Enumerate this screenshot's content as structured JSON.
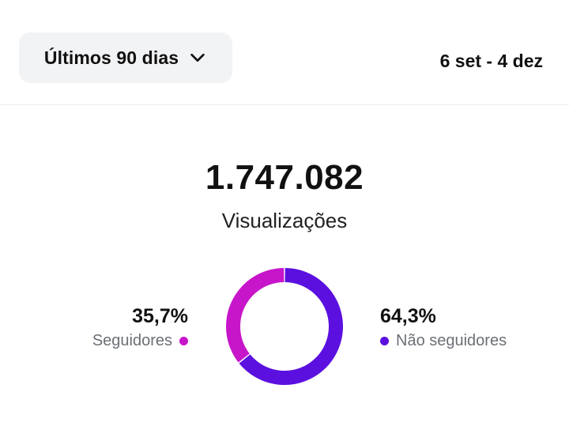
{
  "header": {
    "period_label": "Últimos 90 dias",
    "date_range": "6 set - 4 dez"
  },
  "summary": {
    "total": "1.747.082",
    "total_label": "Visualizações"
  },
  "legend": {
    "followers": {
      "percent": "35,7%",
      "label": "Seguidores"
    },
    "non_followers": {
      "percent": "64,3%",
      "label": "Não seguidores"
    }
  },
  "chart_data": {
    "type": "pie",
    "categories": [
      "Seguidores",
      "Não seguidores"
    ],
    "values": [
      35.7,
      64.3
    ],
    "colors": [
      "#c715c9",
      "#5b10df"
    ]
  },
  "icons": {
    "dropdown": "chevron-down-icon"
  }
}
